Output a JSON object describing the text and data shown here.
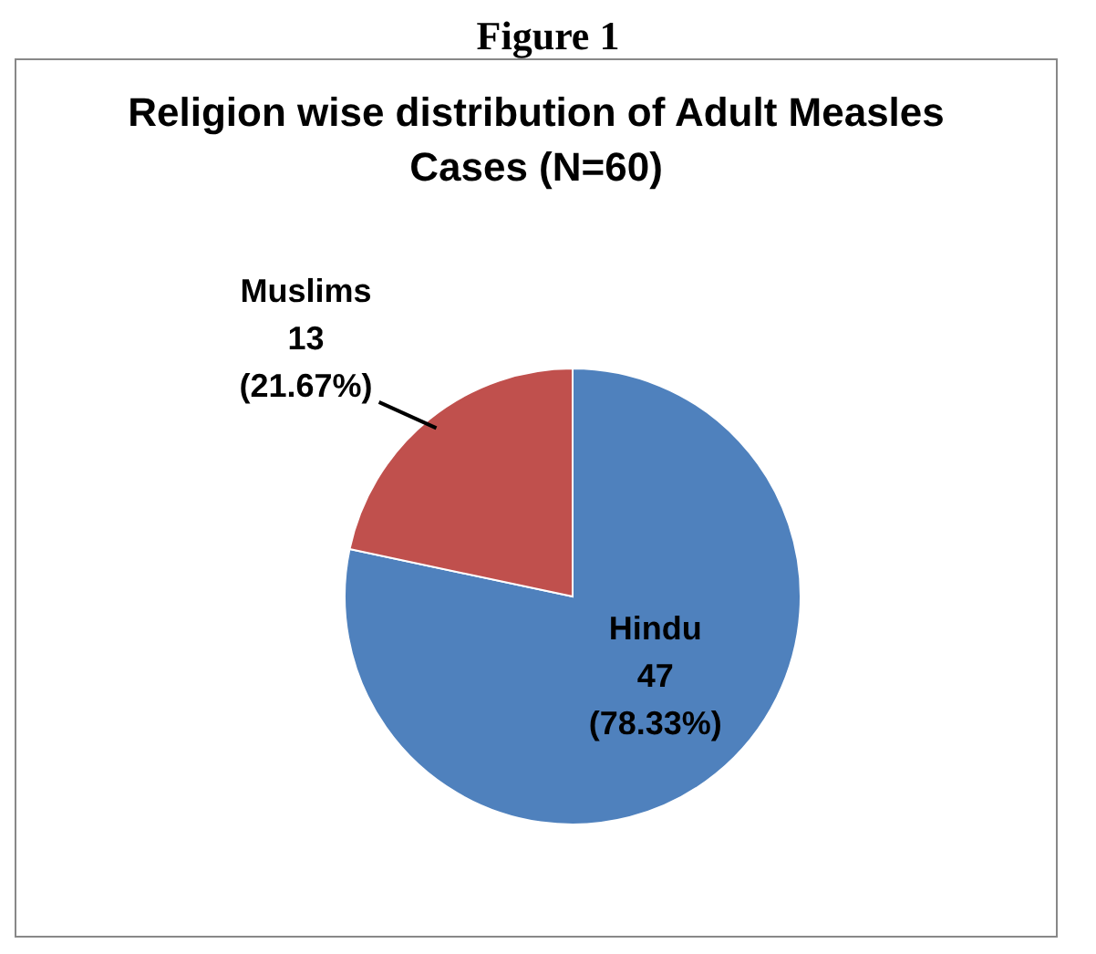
{
  "chart_data": {
    "type": "pie",
    "title": "Religion wise distribution of Adult Measles Cases (N=60)",
    "annotations": [
      "Figure 1"
    ],
    "categories": [
      "Hindu",
      "Muslims"
    ],
    "values": [
      47,
      13
    ],
    "colors": [
      "#4f81bd",
      "#c0504d"
    ],
    "value_labels": [
      "47 (78.33%)",
      "13 (21.67%)"
    ],
    "legend": false
  }
}
